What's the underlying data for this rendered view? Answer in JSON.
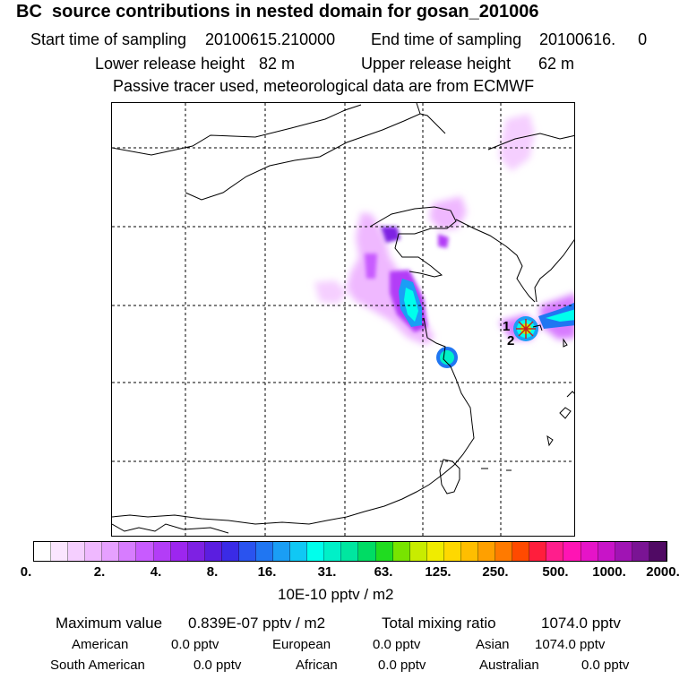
{
  "header": {
    "title": "BC  source contributions in nested domain for gosan_201006",
    "start_label": "Start time of sampling",
    "start_value": "20100615.210000",
    "end_label": "End time of sampling",
    "end_value": "20100616.     0",
    "lower_label": "Lower release height",
    "lower_value": "82 m",
    "upper_label": "Upper release height",
    "upper_value": "62 m",
    "tracer_note": "Passive tracer used, meteorological data are from ECMWF"
  },
  "map": {
    "receptor_labels": [
      "1",
      "2"
    ]
  },
  "legend": {
    "colors": [
      "#ffffff",
      "#fbe6ff",
      "#f5cfff",
      "#efb8ff",
      "#e6a0ff",
      "#d77cff",
      "#c85bff",
      "#b33df7",
      "#9d26ef",
      "#7e21e3",
      "#5b1ee0",
      "#3a2be6",
      "#2a53ef",
      "#2076f2",
      "#1a9ef5",
      "#10c8f4",
      "#00ffec",
      "#00f0c8",
      "#00e6a0",
      "#00dc64",
      "#20dc20",
      "#78e400",
      "#c8ec00",
      "#f0ec00",
      "#ffd800",
      "#ffbe00",
      "#ffa000",
      "#ff7a00",
      "#ff4a00",
      "#ff1e3c",
      "#ff1e8c",
      "#ff14b4",
      "#e614c8",
      "#c814c8",
      "#a014b4",
      "#7a1494",
      "#500a64"
    ],
    "ticks": [
      "0.",
      "2.",
      "4.",
      "8.",
      "16.",
      "31.",
      "63.",
      "125.",
      "250.",
      "500.",
      "1000.",
      "2000."
    ],
    "units": "10E-10 pptv / m2"
  },
  "stats": {
    "max_label": "Maximum value",
    "max_value": "0.839E-07 pptv / m2",
    "total_label": "Total mixing ratio",
    "total_value": "1074.0 pptv",
    "regions": [
      {
        "name": "American",
        "value": "0.0 pptv"
      },
      {
        "name": "European",
        "value": "0.0 pptv"
      },
      {
        "name": "Asian",
        "value": "1074.0 pptv"
      },
      {
        "name": "South American",
        "value": "0.0 pptv"
      },
      {
        "name": "African",
        "value": "0.0 pptv"
      },
      {
        "name": "Australian",
        "value": "0.0 pptv"
      }
    ]
  }
}
